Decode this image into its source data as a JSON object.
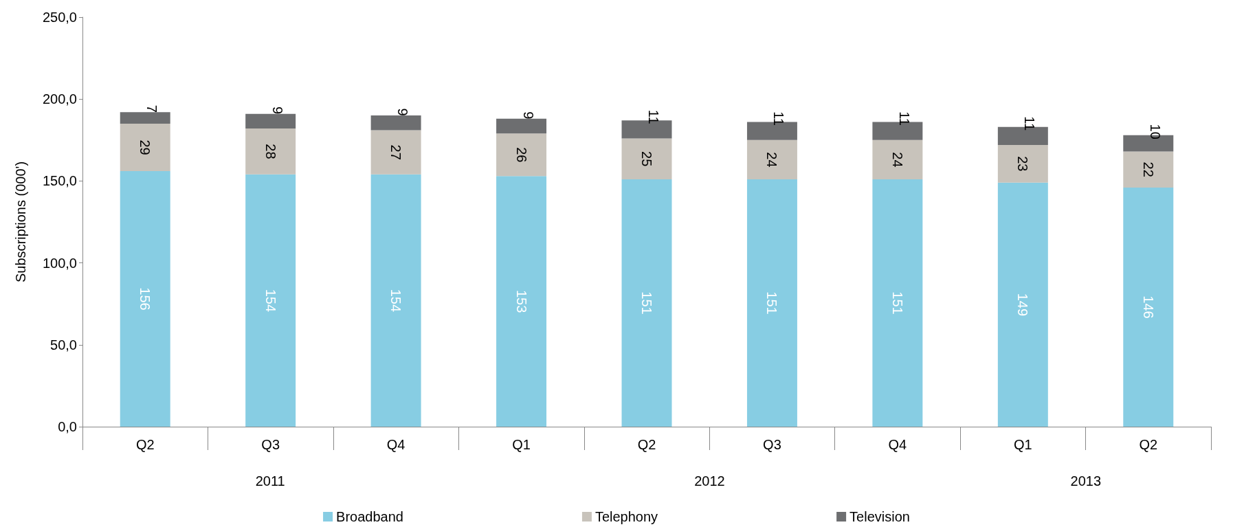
{
  "chart_data": {
    "type": "bar",
    "stacked": true,
    "ylabel": "Subscriptions (000')",
    "categories": [
      "Q2",
      "Q3",
      "Q4",
      "Q1",
      "Q2",
      "Q3",
      "Q4",
      "Q1",
      "Q2"
    ],
    "annotations": [
      "2011",
      "2012",
      "2013"
    ],
    "series": [
      {
        "name": "Broadband",
        "color": "#87cde3",
        "values": [
          156,
          154,
          154,
          153,
          151,
          151,
          151,
          149,
          146
        ]
      },
      {
        "name": "Telephony",
        "color": "#c8c3bb",
        "values": [
          29,
          28,
          27,
          26,
          25,
          24,
          24,
          23,
          22
        ]
      },
      {
        "name": "Television",
        "color": "#6d6e70",
        "values": [
          7,
          9,
          9,
          9,
          11,
          11,
          11,
          11,
          10
        ]
      }
    ],
    "ylim": [
      0,
      250
    ],
    "yticks": [
      {
        "value": 0,
        "label": "0,0"
      },
      {
        "value": 50,
        "label": "50,0"
      },
      {
        "value": 100,
        "label": "100,0"
      },
      {
        "value": 150,
        "label": "150,0"
      },
      {
        "value": 200,
        "label": "200,0"
      },
      {
        "value": 250,
        "label": "250,0"
      }
    ],
    "data_labels": true,
    "grid": false,
    "legend": "bottom"
  }
}
